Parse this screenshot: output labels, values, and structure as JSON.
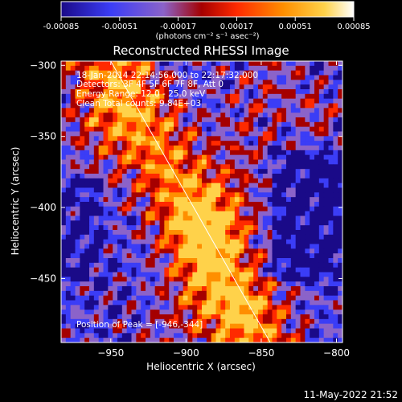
{
  "chart_data": {
    "type": "heatmap",
    "title": "Reconstructed RHESSI Image",
    "xlabel": "Heliocentric X (arcsec)",
    "ylabel": "Heliocentric Y (arcsec)",
    "xlim": [
      -983,
      -796
    ],
    "ylim": [
      -495,
      -297
    ],
    "x_ticks": [
      -950,
      -900,
      -850,
      -800
    ],
    "y_ticks": [
      -300,
      -350,
      -400,
      -450
    ],
    "colorbar": {
      "range": [
        -0.00085,
        0.00085
      ],
      "ticks": [
        "-0.00085",
        "-0.00051",
        "-0.00017",
        "0.00017",
        "0.00051",
        "0.00085"
      ],
      "units_label": "(photons cm⁻² s⁻¹ asec⁻²)"
    },
    "annotations": {
      "time_range": "18-Jan-2014 22:14:56.000 to 22:17:32.000",
      "detectors": "Detectors: 3F 4F 5F 6F 7F 8F, Att 0",
      "energy": "Energy Range: 12.0 - 25.0 keV",
      "method_counts": "Clean     Total counts: 9.84E+03",
      "peak": "Position of Peak = [-946,-344]"
    },
    "limb_line": [
      {
        "x": -950,
        "y": -297
      },
      {
        "x": -844,
        "y": -495
      }
    ]
  },
  "footer_timestamp": "11-May-2022 21:52",
  "colors": {
    "background": "#000000",
    "text": "#ffffff",
    "colormap": [
      "#1a0a88",
      "#3b3df6",
      "#8b63c9",
      "#a50000",
      "#ff2a00",
      "#ff8f00",
      "#ffd24a",
      "#ffffff"
    ]
  }
}
